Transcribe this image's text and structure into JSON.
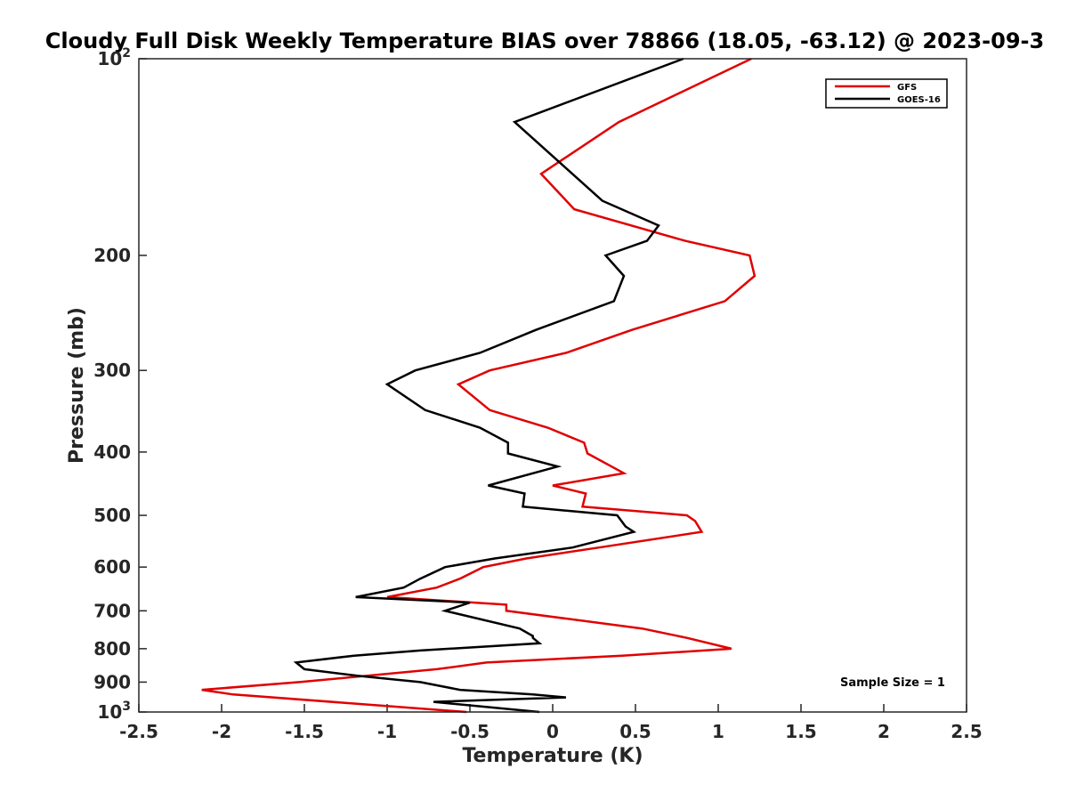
{
  "chart_data": {
    "type": "line",
    "title": "Cloudy Full Disk Weekly Temperature BIAS over 78866 (18.05, -63.12) @ 2023-09-3",
    "xlabel": "Temperature (K)",
    "ylabel": "Pressure (mb)",
    "xlim": [
      -2.5,
      2.5
    ],
    "ylim": [
      100,
      1000
    ],
    "y_scale": "log",
    "y_direction": "reversed",
    "grid": false,
    "x_ticks": [
      {
        "value": -2.5,
        "label": "-2.5"
      },
      {
        "value": -2,
        "label": "-2"
      },
      {
        "value": -1.5,
        "label": "-1.5"
      },
      {
        "value": -1,
        "label": "-1"
      },
      {
        "value": -0.5,
        "label": "-0.5"
      },
      {
        "value": 0,
        "label": "0"
      },
      {
        "value": 0.5,
        "label": "0.5"
      },
      {
        "value": 1,
        "label": "1"
      },
      {
        "value": 1.5,
        "label": "1.5"
      },
      {
        "value": 2,
        "label": "2"
      },
      {
        "value": 2.5,
        "label": "2.5"
      }
    ],
    "y_ticks": [
      {
        "value": 100,
        "base": "10",
        "exp": "2"
      },
      {
        "value": 200,
        "label": "200"
      },
      {
        "value": 300,
        "label": "300"
      },
      {
        "value": 400,
        "label": "400"
      },
      {
        "value": 500,
        "label": "500"
      },
      {
        "value": 600,
        "label": "600"
      },
      {
        "value": 700,
        "label": "700"
      },
      {
        "value": 800,
        "label": "800"
      },
      {
        "value": 900,
        "label": "900"
      },
      {
        "value": 1000,
        "base": "10",
        "exp": "3"
      }
    ],
    "legend_position": "top-right",
    "series": [
      {
        "name": "GFS",
        "color": "#e00000",
        "points": [
          [
            1.2,
            100
          ],
          [
            0.4,
            125
          ],
          [
            -0.07,
            150
          ],
          [
            0.13,
            170
          ],
          [
            0.8,
            190
          ],
          [
            1.19,
            200
          ],
          [
            1.22,
            215
          ],
          [
            1.04,
            235
          ],
          [
            0.48,
            260
          ],
          [
            0.08,
            282
          ],
          [
            -0.38,
            300
          ],
          [
            -0.57,
            315
          ],
          [
            -0.38,
            345
          ],
          [
            -0.03,
            367
          ],
          [
            0.19,
            387
          ],
          [
            0.21,
            402
          ],
          [
            0.43,
            431
          ],
          [
            0.0,
            450
          ],
          [
            0.2,
            463
          ],
          [
            0.18,
            485
          ],
          [
            0.81,
            500
          ],
          [
            0.86,
            510
          ],
          [
            0.9,
            530
          ],
          [
            0.28,
            560
          ],
          [
            -0.16,
            582
          ],
          [
            -0.42,
            600
          ],
          [
            -0.56,
            625
          ],
          [
            -0.7,
            645
          ],
          [
            -1.0,
            667
          ],
          [
            -0.28,
            685
          ],
          [
            -0.28,
            700
          ],
          [
            0.54,
            745
          ],
          [
            0.81,
            770
          ],
          [
            1.08,
            800
          ],
          [
            0.42,
            820
          ],
          [
            -0.4,
            840
          ],
          [
            -0.7,
            860
          ],
          [
            -1.53,
            900
          ],
          [
            -2.12,
            925
          ],
          [
            -1.93,
            940
          ],
          [
            -0.52,
            1000
          ]
        ]
      },
      {
        "name": "GOES-16",
        "color": "#000000",
        "points": [
          [
            0.79,
            100
          ],
          [
            -0.23,
            125
          ],
          [
            0.3,
            165
          ],
          [
            0.64,
            180
          ],
          [
            0.57,
            190
          ],
          [
            0.32,
            200
          ],
          [
            0.43,
            215
          ],
          [
            0.37,
            235
          ],
          [
            -0.1,
            260
          ],
          [
            -0.44,
            282
          ],
          [
            -0.83,
            300
          ],
          [
            -1.0,
            315
          ],
          [
            -0.77,
            345
          ],
          [
            -0.44,
            367
          ],
          [
            -0.27,
            387
          ],
          [
            -0.27,
            402
          ],
          [
            0.03,
            421
          ],
          [
            -0.39,
            450
          ],
          [
            -0.17,
            463
          ],
          [
            -0.18,
            485
          ],
          [
            0.39,
            500
          ],
          [
            0.44,
            520
          ],
          [
            0.49,
            530
          ],
          [
            0.12,
            560
          ],
          [
            -0.35,
            582
          ],
          [
            -0.65,
            600
          ],
          [
            -0.8,
            625
          ],
          [
            -0.9,
            645
          ],
          [
            -1.19,
            667
          ],
          [
            -0.5,
            680
          ],
          [
            -0.65,
            700
          ],
          [
            -0.2,
            745
          ],
          [
            -0.12,
            765
          ],
          [
            -0.12,
            770
          ],
          [
            -0.08,
            785
          ],
          [
            -0.8,
            805
          ],
          [
            -1.2,
            820
          ],
          [
            -1.55,
            840
          ],
          [
            -1.5,
            860
          ],
          [
            -1.18,
            880
          ],
          [
            -0.8,
            900
          ],
          [
            -0.56,
            925
          ],
          [
            -0.12,
            940
          ],
          [
            0.08,
            950
          ],
          [
            -0.72,
            965
          ],
          [
            -0.08,
            1000
          ]
        ]
      }
    ],
    "annotation": "Sample Size = 1"
  }
}
